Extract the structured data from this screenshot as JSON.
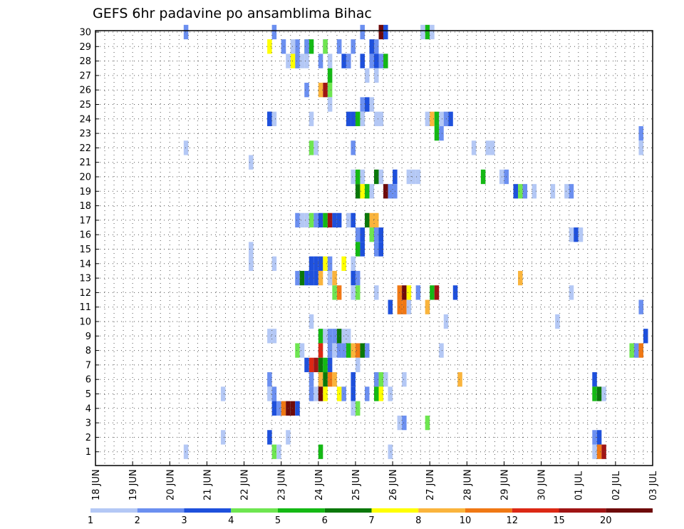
{
  "chart_data": {
    "type": "heatmap",
    "title": "GEFS 6hr padavine po ansamblima Bihac",
    "y_ticks": [
      1,
      2,
      3,
      4,
      5,
      6,
      7,
      8,
      9,
      10,
      11,
      12,
      13,
      14,
      15,
      16,
      17,
      18,
      19,
      20,
      21,
      22,
      23,
      24,
      25,
      26,
      27,
      28,
      29,
      30
    ],
    "x_ticks": [
      "18 JUN",
      "19 JUN",
      "20 JUN",
      "21 JUN",
      "22 JUN",
      "23 JUN",
      "24 JUN",
      "25 JUN",
      "26 JUN",
      "27 JUN",
      "28 JUN",
      "29 JUN",
      "30 JUN",
      "01 JUL",
      "02 JUL",
      "03 JUL"
    ],
    "x_steps": 60,
    "legend": {
      "colors": [
        "#b4c8f5",
        "#6b8ff0",
        "#1e50dc",
        "#6ee650",
        "#14b914",
        "#0a780a",
        "#ffff00",
        "#fab43c",
        "#f07814",
        "#dc2814",
        "#a01414",
        "#6e0a0a"
      ],
      "labels": [
        "1",
        "2",
        "3",
        "4",
        "5",
        "6",
        "7",
        "8",
        "10",
        "12",
        "15",
        "20"
      ]
    },
    "cells": [
      [
        1,
        1,
        19
      ],
      [
        22,
        1,
        19
      ],
      [
        2,
        1,
        27
      ],
      [
        5,
        1,
        27
      ],
      [
        29,
        1,
        40
      ],
      [
        29,
        1,
        46
      ],
      [
        29,
        1,
        52
      ],
      [
        30,
        2,
        19
      ],
      [
        29,
        2,
        40
      ],
      [
        29,
        2,
        43
      ],
      [
        28,
        2,
        43
      ],
      [
        29,
        2,
        52
      ],
      [
        29,
        2,
        55
      ],
      [
        24,
        3,
        37
      ],
      [
        15,
        1,
        33
      ],
      [
        14,
        1,
        33
      ],
      [
        29,
        1,
        42
      ],
      [
        29,
        7,
        37
      ],
      [
        28,
        1,
        43
      ],
      [
        28,
        2,
        43
      ],
      [
        28,
        1,
        50
      ],
      [
        28,
        3,
        53
      ],
      [
        28,
        2,
        59
      ],
      [
        28,
        3,
        54
      ],
      [
        28,
        7,
        42
      ],
      [
        28,
        4,
        61
      ],
      [
        28,
        3,
        57
      ],
      [
        28,
        1,
        41
      ],
      [
        28,
        1,
        44
      ],
      [
        28,
        2,
        48
      ],
      [
        28,
        2,
        54
      ],
      [
        29,
        3,
        59
      ],
      [
        29,
        2,
        60
      ],
      [
        29,
        2,
        49
      ],
      [
        28,
        3,
        60
      ],
      [
        29,
        4,
        49
      ],
      [
        28,
        1,
        62
      ],
      [
        28,
        5,
        62
      ],
      [
        28,
        2,
        61
      ],
      [
        30,
        2,
        57
      ],
      [
        30,
        12,
        61
      ],
      [
        30,
        3,
        62
      ],
      [
        30,
        5,
        71
      ],
      [
        30,
        1,
        72
      ],
      [
        30,
        1,
        70
      ],
      [
        30,
        2,
        38
      ],
      [
        29,
        4,
        45
      ],
      [
        29,
        5,
        46
      ],
      [
        29,
        2,
        45
      ],
      [
        28,
        1,
        45
      ],
      [
        27,
        5,
        50
      ],
      [
        27,
        1,
        58
      ],
      [
        27,
        1,
        60
      ],
      [
        26,
        2,
        45
      ],
      [
        26,
        8,
        48
      ],
      [
        26,
        11,
        49
      ],
      [
        26,
        4,
        50
      ],
      [
        25,
        1,
        50
      ],
      [
        25,
        3,
        58
      ],
      [
        25,
        1,
        59
      ],
      [
        25,
        2,
        57
      ],
      [
        24,
        3,
        37
      ],
      [
        24,
        1,
        38
      ],
      [
        24,
        1,
        46
      ],
      [
        24,
        3,
        54
      ],
      [
        24,
        3,
        55
      ],
      [
        24,
        5,
        56
      ],
      [
        24,
        1,
        57
      ],
      [
        24,
        1,
        60
      ],
      [
        24,
        1,
        61
      ],
      [
        24,
        1,
        71
      ],
      [
        24,
        8,
        72
      ],
      [
        24,
        5,
        73
      ],
      [
        24,
        1,
        74
      ],
      [
        24,
        2,
        75
      ],
      [
        24,
        3,
        76
      ],
      [
        23,
        5,
        73
      ],
      [
        23,
        2,
        74
      ],
      [
        23,
        2,
        117
      ],
      [
        22,
        4,
        46
      ],
      [
        22,
        1,
        47
      ],
      [
        22,
        2,
        55
      ],
      [
        22,
        1,
        81
      ],
      [
        22,
        1,
        84
      ],
      [
        22,
        1,
        85
      ],
      [
        22,
        1,
        117
      ],
      [
        21,
        1,
        33
      ],
      [
        20,
        1,
        55
      ],
      [
        20,
        5,
        56
      ],
      [
        20,
        1,
        57
      ],
      [
        20,
        6,
        60
      ],
      [
        20,
        1,
        61
      ],
      [
        20,
        3,
        64
      ],
      [
        20,
        1,
        67
      ],
      [
        20,
        1,
        68
      ],
      [
        20,
        1,
        69
      ],
      [
        20,
        5,
        83
      ],
      [
        20,
        1,
        87
      ],
      [
        20,
        2,
        88
      ],
      [
        19,
        6,
        56
      ],
      [
        19,
        7,
        57
      ],
      [
        19,
        5,
        58
      ],
      [
        19,
        1,
        59
      ],
      [
        19,
        12,
        62
      ],
      [
        19,
        2,
        63
      ],
      [
        19,
        2,
        64
      ],
      [
        19,
        3,
        90
      ],
      [
        19,
        4,
        91
      ],
      [
        19,
        2,
        92
      ],
      [
        19,
        1,
        94
      ],
      [
        19,
        1,
        98
      ],
      [
        19,
        1,
        101
      ],
      [
        19,
        2,
        102
      ],
      [
        17,
        2,
        43
      ],
      [
        17,
        1,
        44
      ],
      [
        17,
        1,
        45
      ],
      [
        17,
        4,
        46
      ],
      [
        17,
        2,
        47
      ],
      [
        17,
        3,
        48
      ],
      [
        17,
        5,
        49
      ],
      [
        17,
        11,
        50
      ],
      [
        17,
        3,
        51
      ],
      [
        17,
        3,
        52
      ],
      [
        17,
        1,
        54
      ],
      [
        17,
        3,
        55
      ],
      [
        17,
        6,
        58
      ],
      [
        17,
        8,
        59
      ],
      [
        17,
        8,
        60
      ],
      [
        16,
        2,
        56
      ],
      [
        16,
        3,
        57
      ],
      [
        16,
        4,
        59
      ],
      [
        16,
        2,
        60
      ],
      [
        16,
        3,
        61
      ],
      [
        16,
        1,
        102
      ],
      [
        16,
        3,
        103
      ],
      [
        16,
        1,
        104
      ],
      [
        15,
        5,
        56
      ],
      [
        15,
        3,
        57
      ],
      [
        15,
        2,
        60
      ],
      [
        15,
        3,
        61
      ],
      [
        14,
        1,
        33
      ],
      [
        14,
        1,
        38
      ],
      [
        14,
        3,
        46
      ],
      [
        14,
        3,
        47
      ],
      [
        14,
        3,
        48
      ],
      [
        14,
        7,
        49
      ],
      [
        14,
        2,
        50
      ],
      [
        14,
        7,
        53
      ],
      [
        14,
        1,
        55
      ],
      [
        13,
        2,
        43
      ],
      [
        13,
        6,
        44
      ],
      [
        13,
        3,
        45
      ],
      [
        13,
        3,
        46
      ],
      [
        13,
        3,
        47
      ],
      [
        13,
        8,
        48
      ],
      [
        13,
        1,
        50
      ],
      [
        13,
        8,
        51
      ],
      [
        13,
        3,
        55
      ],
      [
        13,
        2,
        56
      ],
      [
        13,
        8,
        91
      ],
      [
        12,
        4,
        51
      ],
      [
        12,
        9,
        52
      ],
      [
        12,
        1,
        55
      ],
      [
        12,
        4,
        56
      ],
      [
        12,
        1,
        60
      ],
      [
        12,
        9,
        65
      ],
      [
        12,
        12,
        66
      ],
      [
        12,
        7,
        67
      ],
      [
        12,
        2,
        69
      ],
      [
        12,
        5,
        72
      ],
      [
        12,
        11,
        73
      ],
      [
        12,
        3,
        77
      ],
      [
        12,
        1,
        102
      ],
      [
        11,
        3,
        63
      ],
      [
        11,
        9,
        65
      ],
      [
        11,
        9,
        66
      ],
      [
        11,
        1,
        67
      ],
      [
        11,
        8,
        71
      ],
      [
        11,
        2,
        117
      ],
      [
        10,
        1,
        46
      ],
      [
        10,
        1,
        75
      ],
      [
        10,
        1,
        99
      ],
      [
        9,
        1,
        37
      ],
      [
        9,
        1,
        38
      ],
      [
        9,
        5,
        48
      ],
      [
        9,
        1,
        49
      ],
      [
        9,
        2,
        50
      ],
      [
        9,
        2,
        51
      ],
      [
        9,
        6,
        52
      ],
      [
        9,
        1,
        53
      ],
      [
        9,
        1,
        54
      ],
      [
        9,
        3,
        118
      ],
      [
        8,
        4,
        43
      ],
      [
        8,
        1,
        44
      ],
      [
        8,
        10,
        48
      ],
      [
        8,
        2,
        50
      ],
      [
        8,
        1,
        51
      ],
      [
        8,
        2,
        52
      ],
      [
        8,
        2,
        53
      ],
      [
        8,
        5,
        54
      ],
      [
        8,
        8,
        55
      ],
      [
        8,
        9,
        56
      ],
      [
        8,
        6,
        57
      ],
      [
        8,
        2,
        58
      ],
      [
        8,
        1,
        74
      ],
      [
        8,
        4,
        115
      ],
      [
        8,
        2,
        116
      ],
      [
        8,
        9,
        117
      ],
      [
        7,
        3,
        45
      ],
      [
        7,
        10,
        46
      ],
      [
        7,
        11,
        47
      ],
      [
        7,
        6,
        48
      ],
      [
        7,
        5,
        49
      ],
      [
        7,
        3,
        50
      ],
      [
        7,
        1,
        56
      ],
      [
        6,
        2,
        37
      ],
      [
        6,
        2,
        46
      ],
      [
        6,
        8,
        48
      ],
      [
        6,
        6,
        49
      ],
      [
        6,
        9,
        50
      ],
      [
        6,
        8,
        51
      ],
      [
        6,
        3,
        55
      ],
      [
        6,
        2,
        60
      ],
      [
        6,
        4,
        61
      ],
      [
        6,
        1,
        62
      ],
      [
        6,
        1,
        66
      ],
      [
        6,
        8,
        78
      ],
      [
        6,
        3,
        107
      ],
      [
        5,
        1,
        37
      ],
      [
        5,
        2,
        38
      ],
      [
        5,
        2,
        46
      ],
      [
        5,
        1,
        47
      ],
      [
        5,
        1,
        48
      ],
      [
        5,
        12,
        48
      ],
      [
        5,
        7,
        49
      ],
      [
        5,
        7,
        52
      ],
      [
        5,
        2,
        53
      ],
      [
        5,
        3,
        55
      ],
      [
        5,
        2,
        58
      ],
      [
        5,
        5,
        60
      ],
      [
        5,
        7,
        61
      ],
      [
        5,
        1,
        63
      ],
      [
        5,
        5,
        107
      ],
      [
        5,
        6,
        108
      ],
      [
        5,
        1,
        109
      ],
      [
        4,
        3,
        38
      ],
      [
        4,
        2,
        39
      ],
      [
        4,
        9,
        40
      ],
      [
        4,
        12,
        41
      ],
      [
        4,
        12,
        42
      ],
      [
        4,
        3,
        43
      ],
      [
        4,
        1,
        55
      ],
      [
        4,
        4,
        56
      ],
      [
        3,
        1,
        65
      ],
      [
        3,
        2,
        66
      ],
      [
        3,
        4,
        71
      ],
      [
        2,
        3,
        37
      ],
      [
        2,
        1,
        41
      ],
      [
        2,
        2,
        107
      ],
      [
        2,
        3,
        108
      ],
      [
        1,
        4,
        38
      ],
      [
        1,
        1,
        39
      ],
      [
        1,
        5,
        48
      ],
      [
        1,
        1,
        63
      ],
      [
        1,
        1,
        107
      ],
      [
        1,
        9,
        108
      ],
      [
        1,
        11,
        109
      ]
    ]
  }
}
